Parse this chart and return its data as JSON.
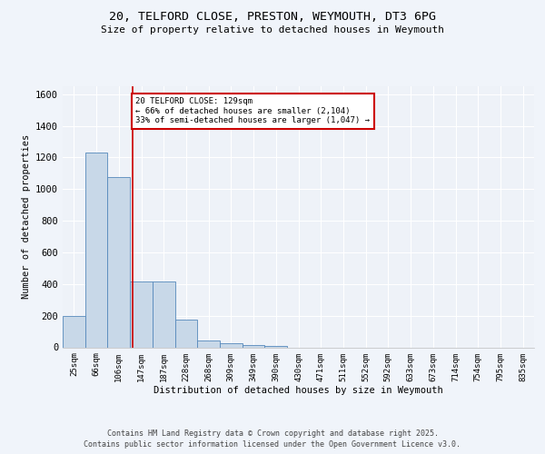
{
  "title_line1": "20, TELFORD CLOSE, PRESTON, WEYMOUTH, DT3 6PG",
  "title_line2": "Size of property relative to detached houses in Weymouth",
  "xlabel": "Distribution of detached houses by size in Weymouth",
  "ylabel": "Number of detached properties",
  "bar_labels": [
    "25sqm",
    "66sqm",
    "106sqm",
    "147sqm",
    "187sqm",
    "228sqm",
    "268sqm",
    "309sqm",
    "349sqm",
    "390sqm",
    "430sqm",
    "471sqm",
    "511sqm",
    "552sqm",
    "592sqm",
    "633sqm",
    "673sqm",
    "714sqm",
    "754sqm",
    "795sqm",
    "835sqm"
  ],
  "bar_heights": [
    200,
    1230,
    1075,
    415,
    415,
    175,
    45,
    25,
    15,
    10,
    0,
    0,
    0,
    0,
    0,
    0,
    0,
    0,
    0,
    0,
    0
  ],
  "bar_color": "#c8d8e8",
  "bar_edge_color": "#5588bb",
  "background_color": "#eef2f8",
  "grid_color": "#ffffff",
  "annotation_text": "20 TELFORD CLOSE: 129sqm\n← 66% of detached houses are smaller (2,104)\n33% of semi-detached houses are larger (1,047) →",
  "annotation_box_color": "#ffffff",
  "annotation_box_edge": "#cc0000",
  "vline_color": "#cc0000",
  "vline_x": 2.6,
  "ylim": [
    0,
    1650
  ],
  "yticks": [
    0,
    200,
    400,
    600,
    800,
    1000,
    1200,
    1400,
    1600
  ],
  "footnote1": "Contains HM Land Registry data © Crown copyright and database right 2025.",
  "footnote2": "Contains public sector information licensed under the Open Government Licence v3.0.",
  "fig_bg": "#f0f4fa"
}
